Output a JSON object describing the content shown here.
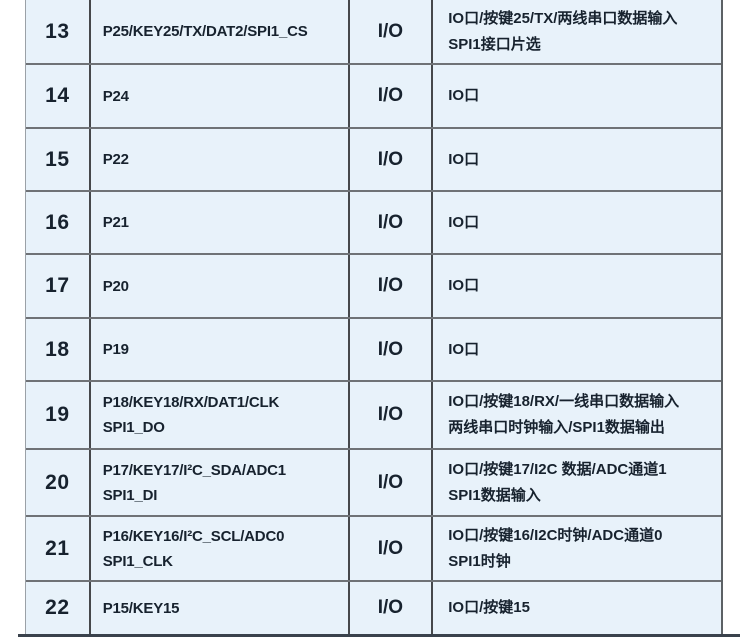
{
  "colors": {
    "cell_background": "#e8f2fa",
    "text": "#17222e",
    "horizontal_border": "#6f7276",
    "vertical_border": "#46484b",
    "bottom_bar": "#3a424c"
  },
  "table": {
    "columns": [
      "pin-number",
      "pin-name",
      "io-type",
      "description"
    ],
    "rows": [
      {
        "no": "13",
        "name": [
          "P25/KEY25/TX/DAT2/SPI1_CS"
        ],
        "io": "I/O",
        "desc": [
          "IO口/按键25/TX/两线串口数据输入",
          "SPI1接口片选"
        ]
      },
      {
        "no": "14",
        "name": [
          "P24"
        ],
        "io": "I/O",
        "desc": [
          "IO口"
        ]
      },
      {
        "no": "15",
        "name": [
          "P22"
        ],
        "io": "I/O",
        "desc": [
          "IO口"
        ]
      },
      {
        "no": "16",
        "name": [
          "P21"
        ],
        "io": "I/O",
        "desc": [
          "IO口"
        ]
      },
      {
        "no": "17",
        "name": [
          "P20"
        ],
        "io": "I/O",
        "desc": [
          "IO口"
        ]
      },
      {
        "no": "18",
        "name": [
          "P19"
        ],
        "io": "I/O",
        "desc": [
          "IO口"
        ]
      },
      {
        "no": "19",
        "name": [
          "P18/KEY18/RX/DAT1/CLK",
          "SPI1_DO"
        ],
        "io": "I/O",
        "desc": [
          "IO口/按键18/RX/一线串口数据输入",
          "两线串口时钟输入/SPI1数据输出"
        ]
      },
      {
        "no": "20",
        "name": [
          "P17/KEY17/I²C_SDA/ADC1",
          "SPI1_DI"
        ],
        "io": "I/O",
        "desc": [
          "IO口/按键17/I2C 数据/ADC通道1",
          "SPI1数据输入"
        ]
      },
      {
        "no": "21",
        "name": [
          "P16/KEY16/I²C_SCL/ADC0",
          "SPI1_CLK"
        ],
        "io": "I/O",
        "desc": [
          "IO口/按键16/I2C时钟/ADC通道0",
          "SPI1时钟"
        ]
      },
      {
        "no": "22",
        "name": [
          "P15/KEY15"
        ],
        "io": "I/O",
        "desc": [
          "IO口/按键15"
        ]
      }
    ]
  }
}
